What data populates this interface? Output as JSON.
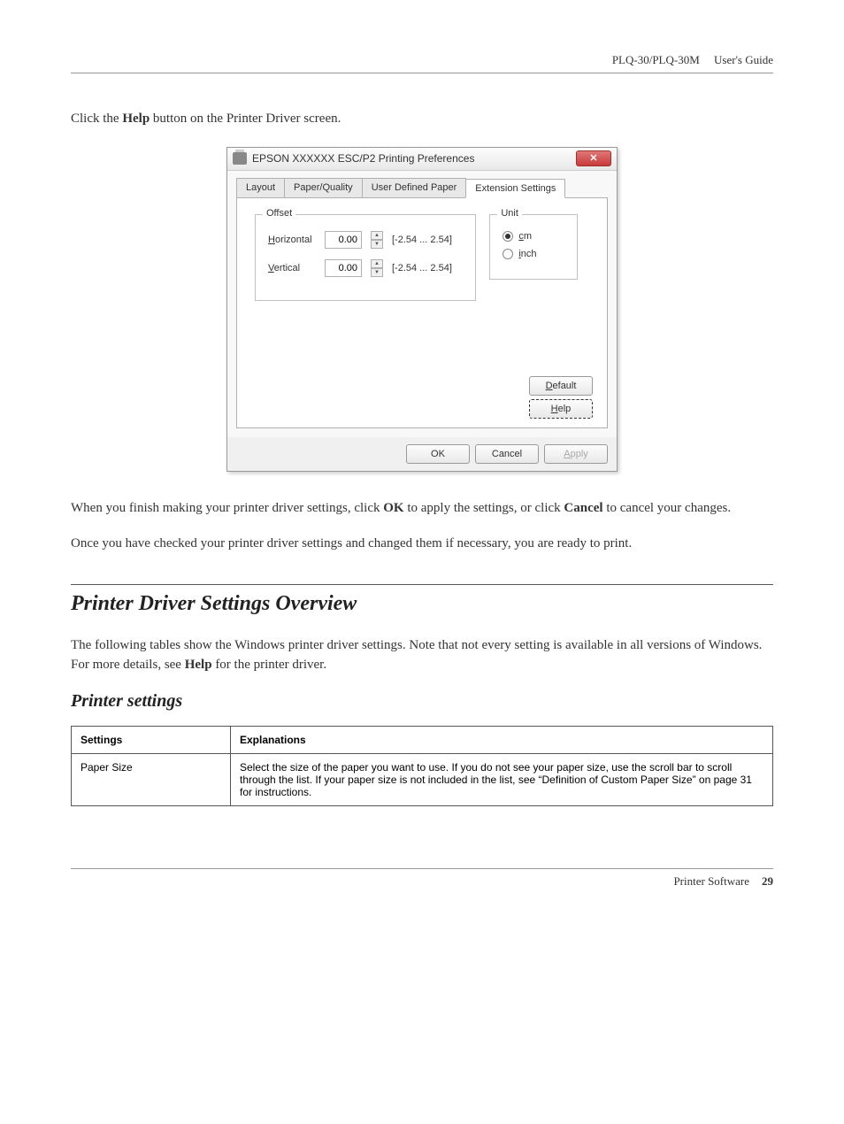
{
  "header": {
    "product": "PLQ-30/PLQ-30M",
    "doc_type": "User's Guide"
  },
  "intro_text": {
    "prefix": "Click the ",
    "bold": "Help",
    "suffix": " button on the Printer Driver screen."
  },
  "dialog": {
    "title": "EPSON XXXXXX ESC/P2 Printing Preferences",
    "close_glyph": "✕",
    "tabs": {
      "layout": "Layout",
      "paper_quality": "Paper/Quality",
      "user_defined_paper": "User Defined Paper",
      "extension_settings": "Extension Settings"
    },
    "offset": {
      "legend": "Offset",
      "horizontal_label_pre": "H",
      "horizontal_label_post": "orizontal",
      "vertical_label_pre": "V",
      "vertical_label_post": "ertical",
      "h_value": "0.00",
      "v_value": "0.00",
      "h_range": "[-2.54 ... 2.54]",
      "v_range": "[-2.54 ... 2.54]"
    },
    "unit": {
      "legend": "Unit",
      "cm_pre": "c",
      "cm_post": "m",
      "inch_pre": "i",
      "inch_post": "nch",
      "selected": "cm"
    },
    "buttons": {
      "default_pre": "D",
      "default_post": "efault",
      "help_pre": "H",
      "help_post": "elp",
      "ok": "OK",
      "cancel": "Cancel",
      "apply_pre": "A",
      "apply_post": "pply"
    }
  },
  "after_text1": {
    "prefix": "When you finish making your printer driver settings, click ",
    "bold1": "OK",
    "mid": " to apply the settings, or click ",
    "bold2": "Cancel",
    "suffix": " to cancel your changes."
  },
  "after_text2": "Once you have checked your printer driver settings and changed them if necessary, you are ready to print.",
  "section": {
    "heading": "Printer Driver Settings Overview",
    "body_prefix": "The following tables show the Windows printer driver settings. Note that not every setting is available in all versions of Windows. For more details, see ",
    "body_bold": "Help",
    "body_suffix": " for the printer driver."
  },
  "subsection": {
    "heading": "Printer settings"
  },
  "table": {
    "col1": "Settings",
    "col2": "Explanations",
    "row1_setting": "Paper Size",
    "row1_explanation": "Select the size of the paper you want to use. If you do not see your paper size, use the scroll bar to scroll through the list. If your paper size is not included in the list, see “Definition of Custom Paper Size” on page 31 for instructions."
  },
  "footer": {
    "label": "Printer Software",
    "page_num": "29"
  }
}
